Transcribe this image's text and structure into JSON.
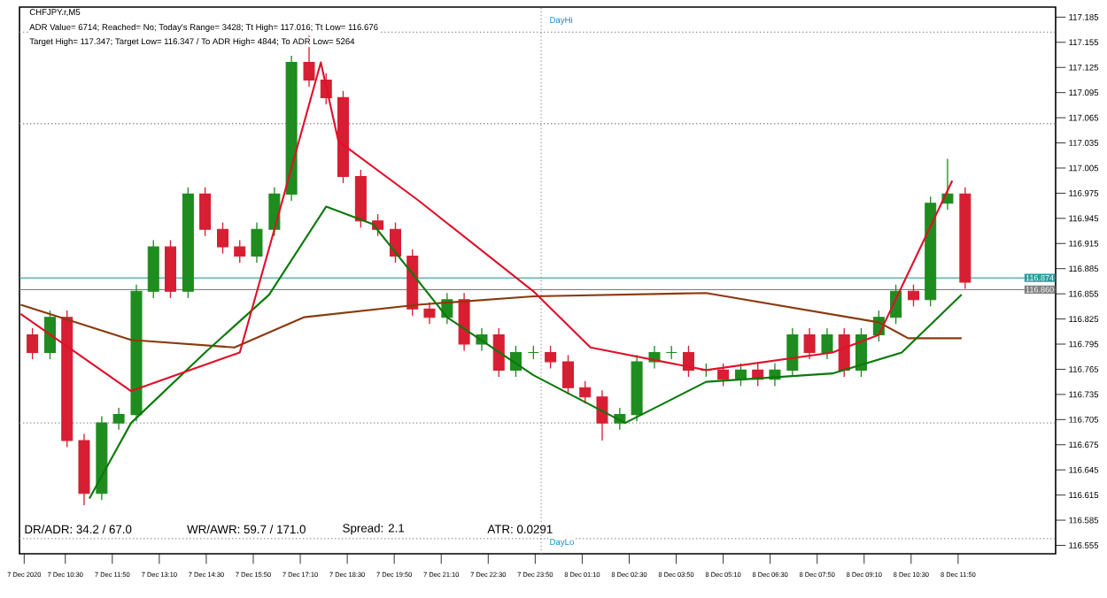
{
  "chart_data": {
    "type": "candlestick",
    "title": "CHFJPY.r,M5",
    "annotations": [
      "ADR Value= 6714; Reached= No; Today's Range= 3428; Tt High= 117.016; Tt Low= 116.676",
      "Target High= 117.347; Target Low= 116.347 / To ADR High= 4844; To ADR Low= 5264",
      "DR/ADR: 34.2 / 67.0",
      "WR/AWR: 59.7 / 171.0",
      "Spread: 2.1",
      "ATR: 0.0291",
      "DayHi",
      "DayLo"
    ],
    "x": [
      "2020-12-07T09:34",
      "2020-12-07T10:04",
      "2020-12-07T10:33",
      "2020-12-07T11:02",
      "2020-12-07T11:32",
      "2020-12-07T12:01",
      "2020-12-07T12:31",
      "2020-12-07T13:00",
      "2020-12-07T13:29",
      "2020-12-07T13:59",
      "2020-12-07T14:28",
      "2020-12-07T14:58",
      "2020-12-07T15:27",
      "2020-12-07T15:56",
      "2020-12-07T16:26",
      "2020-12-07T16:55",
      "2020-12-07T17:25",
      "2020-12-07T17:54",
      "2020-12-07T18:23",
      "2020-12-07T18:53",
      "2020-12-07T19:22",
      "2020-12-07T19:52",
      "2020-12-07T20:21",
      "2020-12-07T20:50",
      "2020-12-07T21:20",
      "2020-12-07T21:49",
      "2020-12-07T22:19",
      "2020-12-07T22:48",
      "2020-12-07T23:17",
      "2020-12-07T23:47",
      "2020-12-08T00:16",
      "2020-12-08T00:46",
      "2020-12-08T01:15",
      "2020-12-08T01:44",
      "2020-12-08T02:14",
      "2020-12-08T02:43",
      "2020-12-08T03:13",
      "2020-12-08T03:42",
      "2020-12-08T04:11",
      "2020-12-08T04:41",
      "2020-12-08T05:10",
      "2020-12-08T05:40",
      "2020-12-08T06:09",
      "2020-12-08T06:38",
      "2020-12-08T07:08",
      "2020-12-08T07:37",
      "2020-12-08T08:07",
      "2020-12-08T08:36",
      "2020-12-08T09:05",
      "2020-12-08T09:35",
      "2020-12-08T10:04",
      "2020-12-08T10:34",
      "2020-12-08T11:03",
      "2020-12-08T11:32",
      "2020-12-08T12:02"
    ],
    "ohlc": [
      [
        116.806,
        116.814,
        116.777,
        116.785
      ],
      [
        116.785,
        116.835,
        116.777,
        116.827
      ],
      [
        116.827,
        116.835,
        116.672,
        116.68
      ],
      [
        116.68,
        116.688,
        116.603,
        116.617
      ],
      [
        116.617,
        116.709,
        116.609,
        116.701
      ],
      [
        116.701,
        116.719,
        116.693,
        116.711
      ],
      [
        116.711,
        116.866,
        116.703,
        116.858
      ],
      [
        116.858,
        116.919,
        116.85,
        116.911
      ],
      [
        116.911,
        116.919,
        116.85,
        116.858
      ],
      [
        116.858,
        116.982,
        116.85,
        116.974
      ],
      [
        116.974,
        116.982,
        116.924,
        116.932
      ],
      [
        116.932,
        116.94,
        116.903,
        116.911
      ],
      [
        116.911,
        116.919,
        116.892,
        116.9
      ],
      [
        116.9,
        116.94,
        116.892,
        116.932
      ],
      [
        116.932,
        116.982,
        116.924,
        116.974
      ],
      [
        116.974,
        117.139,
        116.966,
        117.131
      ],
      [
        117.131,
        117.163,
        117.102,
        117.11
      ],
      [
        117.11,
        117.118,
        117.081,
        117.089
      ],
      [
        117.089,
        117.097,
        116.987,
        116.995
      ],
      [
        116.995,
        117.003,
        116.934,
        116.942
      ],
      [
        116.942,
        116.95,
        116.924,
        116.932
      ],
      [
        116.932,
        116.94,
        116.892,
        116.9
      ],
      [
        116.9,
        116.908,
        116.829,
        116.837
      ],
      [
        116.837,
        116.845,
        116.819,
        116.827
      ],
      [
        116.827,
        116.856,
        116.819,
        116.848
      ],
      [
        116.848,
        116.856,
        116.787,
        116.795
      ],
      [
        116.795,
        116.814,
        116.787,
        116.806
      ],
      [
        116.806,
        116.814,
        116.756,
        116.764
      ],
      [
        116.764,
        116.793,
        116.756,
        116.785
      ],
      [
        116.785,
        116.793,
        116.777,
        116.785
      ],
      [
        116.785,
        116.793,
        116.766,
        116.774
      ],
      [
        116.774,
        116.782,
        116.735,
        116.743
      ],
      [
        116.743,
        116.751,
        116.724,
        116.732
      ],
      [
        116.732,
        116.74,
        116.68,
        116.701
      ],
      [
        116.701,
        116.719,
        116.693,
        116.711
      ],
      [
        116.711,
        116.782,
        116.703,
        116.774
      ],
      [
        116.774,
        116.793,
        116.766,
        116.785
      ],
      [
        116.785,
        116.793,
        116.777,
        116.785
      ],
      [
        116.785,
        116.793,
        116.756,
        116.764
      ],
      [
        116.764,
        116.772,
        116.756,
        116.764
      ],
      [
        116.764,
        116.772,
        116.745,
        116.753
      ],
      [
        116.753,
        116.772,
        116.745,
        116.764
      ],
      [
        116.764,
        116.772,
        116.745,
        116.753
      ],
      [
        116.753,
        116.772,
        116.745,
        116.764
      ],
      [
        116.764,
        116.814,
        116.756,
        116.806
      ],
      [
        116.806,
        116.814,
        116.777,
        116.785
      ],
      [
        116.785,
        116.814,
        116.777,
        116.806
      ],
      [
        116.806,
        116.814,
        116.756,
        116.764
      ],
      [
        116.764,
        116.814,
        116.756,
        116.806
      ],
      [
        116.806,
        116.835,
        116.798,
        116.827
      ],
      [
        116.827,
        116.866,
        116.819,
        116.858
      ],
      [
        116.858,
        116.866,
        116.84,
        116.848
      ],
      [
        116.848,
        116.971,
        116.84,
        116.963
      ],
      [
        116.963,
        117.016,
        116.955,
        116.974
      ],
      [
        116.974,
        116.982,
        116.861,
        116.869
      ]
    ],
    "series": [
      {
        "type": "line",
        "color": "#8b3a0e",
        "x": [
          "2020-12-07T09:14",
          "2020-12-07T12:22",
          "2020-12-07T15:18",
          "2020-12-07T17:16",
          "2020-12-07T20:30",
          "2020-12-07T23:47",
          "2020-12-08T04:41",
          "2020-12-08T09:35",
          "2020-12-08T10:25",
          "2020-12-08T11:56"
        ],
        "values": [
          116.842,
          116.8,
          116.791,
          116.827,
          116.842,
          116.852,
          116.856,
          116.821,
          116.802,
          116.802
        ]
      },
      {
        "type": "line",
        "color": "#0a7a0a",
        "x": [
          "2020-12-07T11:11",
          "2020-12-07T12:22",
          "2020-12-07T14:28",
          "2020-12-07T16:17",
          "2020-12-07T17:54",
          "2020-12-07T19:14",
          "2020-12-07T21:20",
          "2020-12-07T23:47",
          "2020-12-08T02:23",
          "2020-12-08T04:41",
          "2020-12-08T08:16",
          "2020-12-08T10:14",
          "2020-12-08T11:56"
        ],
        "values": [
          116.611,
          116.701,
          116.785,
          116.854,
          116.959,
          116.938,
          116.827,
          116.758,
          116.701,
          116.75,
          116.76,
          116.785,
          116.854
        ]
      },
      {
        "type": "line",
        "color": "#e0102a",
        "x": [
          "2020-12-07T09:14",
          "2020-12-07T12:22",
          "2020-12-07T15:27",
          "2020-12-07T16:26",
          "2020-12-07T17:45",
          "2020-12-07T18:15",
          "2020-12-07T20:30",
          "2020-12-07T23:47",
          "2020-12-08T01:24",
          "2020-12-08T04:41",
          "2020-12-08T08:16",
          "2020-12-08T09:35",
          "2020-12-08T11:40"
        ],
        "values": [
          116.831,
          116.739,
          116.785,
          116.932,
          117.131,
          117.037,
          116.967,
          116.858,
          116.791,
          116.764,
          116.785,
          116.806,
          116.99
        ]
      }
    ],
    "xlim": [
      "2020-12-07T09:12",
      "2020-12-08T14:36"
    ],
    "ylim": [
      116.545,
      117.197
    ],
    "xticks": [
      {
        "value": "2020-12-07T09:20",
        "label": "7 Dec 2020"
      },
      {
        "value": "2020-12-07T10:30",
        "label": "7 Dec 10:30"
      },
      {
        "value": "2020-12-07T11:50",
        "label": "7 Dec 11:50"
      },
      {
        "value": "2020-12-07T13:10",
        "label": "7 Dec 13:10"
      },
      {
        "value": "2020-12-07T14:30",
        "label": "7 Dec 14:30"
      },
      {
        "value": "2020-12-07T15:50",
        "label": "7 Dec 15:50"
      },
      {
        "value": "2020-12-07T17:10",
        "label": "7 Dec 17:10"
      },
      {
        "value": "2020-12-07T18:30",
        "label": "7 Dec 18:30"
      },
      {
        "value": "2020-12-07T19:50",
        "label": "7 Dec 19:50"
      },
      {
        "value": "2020-12-07T21:10",
        "label": "7 Dec 21:10"
      },
      {
        "value": "2020-12-07T22:30",
        "label": "7 Dec 22:30"
      },
      {
        "value": "2020-12-07T23:50",
        "label": "7 Dec 23:50"
      },
      {
        "value": "2020-12-08T01:10",
        "label": "8 Dec 01:10"
      },
      {
        "value": "2020-12-08T02:30",
        "label": "8 Dec 02:30"
      },
      {
        "value": "2020-12-08T03:50",
        "label": "8 Dec 03:50"
      },
      {
        "value": "2020-12-08T05:10",
        "label": "8 Dec 05:10"
      },
      {
        "value": "2020-12-08T06:30",
        "label": "8 Dec 06:30"
      },
      {
        "value": "2020-12-08T07:50",
        "label": "8 Dec 07:50"
      },
      {
        "value": "2020-12-08T09:10",
        "label": "8 Dec 09:10"
      },
      {
        "value": "2020-12-08T10:30",
        "label": "8 Dec 10:30"
      },
      {
        "value": "2020-12-08T11:50",
        "label": "8 Dec 11:50"
      }
    ],
    "yticks": [
      116.555,
      116.585,
      116.615,
      116.645,
      116.675,
      116.705,
      116.735,
      116.765,
      116.795,
      116.825,
      116.855,
      116.885,
      116.915,
      116.945,
      116.975,
      117.005,
      117.035,
      117.065,
      117.095,
      117.125,
      117.155,
      117.185
    ],
    "ref_lines": [
      {
        "axis": "y",
        "value": 116.874,
        "label": "116.874",
        "color": "#2a9d9d",
        "line_style": "solid"
      },
      {
        "axis": "y",
        "value": 116.86,
        "label": "116.860",
        "color": "#808080",
        "line_style": "solid"
      },
      {
        "axis": "y",
        "value": 117.167,
        "color": "#909090",
        "line_style": "dotted"
      },
      {
        "axis": "y",
        "value": 116.563,
        "color": "#909090",
        "line_style": "dotted"
      },
      {
        "axis": "y",
        "value": 117.058,
        "color": "#909090",
        "line_style": "dotted"
      },
      {
        "axis": "y",
        "value": 116.701,
        "color": "#909090",
        "line_style": "dotted"
      },
      {
        "axis": "x",
        "value": "2020-12-08T00:00",
        "color": "#909090",
        "line_style": "dotted"
      }
    ],
    "grid": false
  }
}
